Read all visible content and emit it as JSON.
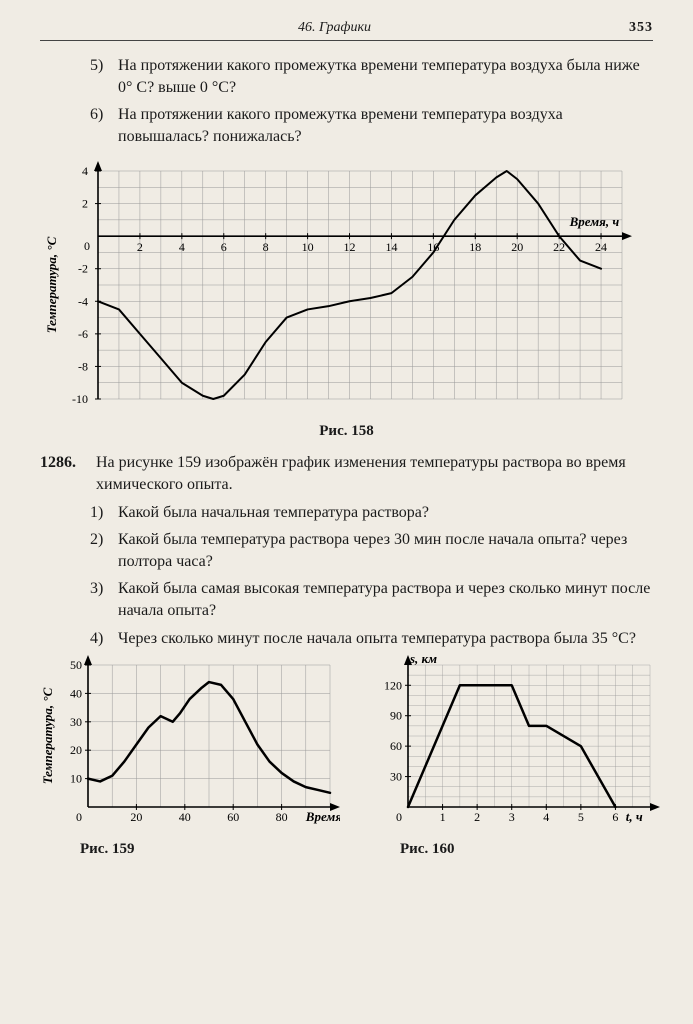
{
  "header": {
    "chapter": "46. Графики",
    "page_number": "353"
  },
  "top_questions": [
    {
      "num": "5)",
      "text": "На протяжении какого промежутка времени температура воздуха была ниже 0° С? выше 0 °С?"
    },
    {
      "num": "6)",
      "text": "На протяжении какого промежутка времени температура воздуха повышалась? понижалась?"
    }
  ],
  "problem": {
    "num": "1286.",
    "intro": "На рисунке 159 изображён график изменения температуры раствора во время химического опыта.",
    "questions": [
      {
        "num": "1)",
        "text": "Какой была начальная температура раствора?"
      },
      {
        "num": "2)",
        "text": "Какой была температура раствора через 30 мин после начала опыта? через полтора часа?"
      },
      {
        "num": "3)",
        "text": "Какой была самая высокая температура раствора и через сколько минут после начала опыта?"
      },
      {
        "num": "4)",
        "text": "Через сколько минут после начала опыта температура раствора была 35 °С?"
      }
    ]
  },
  "captions": {
    "fig158": "Рис. 158",
    "fig159": "Рис. 159",
    "fig160": "Рис. 160"
  },
  "chart158": {
    "type": "line",
    "xlabel": "Время, ч",
    "ylabel": "Температура, °С",
    "xlim": [
      0,
      25
    ],
    "ylim": [
      -10,
      4
    ],
    "xticks": [
      2,
      4,
      6,
      8,
      10,
      12,
      14,
      16,
      18,
      20,
      22,
      24
    ],
    "yticks_pos": [
      2,
      4
    ],
    "yticks_neg": [
      -2,
      -4,
      -6,
      -8,
      -10
    ],
    "grid_color": "#999",
    "axis_color": "#000",
    "line_color": "#000",
    "line_width": 2,
    "bg": "#f0ece4",
    "data": [
      [
        0,
        -4
      ],
      [
        1,
        -4.5
      ],
      [
        2,
        -6
      ],
      [
        3,
        -7.5
      ],
      [
        4,
        -9
      ],
      [
        5,
        -9.8
      ],
      [
        5.5,
        -10
      ],
      [
        6,
        -9.8
      ],
      [
        7,
        -8.5
      ],
      [
        8,
        -6.5
      ],
      [
        9,
        -5
      ],
      [
        10,
        -4.5
      ],
      [
        11,
        -4.3
      ],
      [
        12,
        -4
      ],
      [
        13,
        -3.8
      ],
      [
        14,
        -3.5
      ],
      [
        15,
        -2.5
      ],
      [
        16,
        -1
      ],
      [
        16.5,
        0
      ],
      [
        17,
        1
      ],
      [
        18,
        2.5
      ],
      [
        19,
        3.6
      ],
      [
        19.5,
        4
      ],
      [
        20,
        3.5
      ],
      [
        21,
        2
      ],
      [
        22,
        0
      ],
      [
        23,
        -1.5
      ],
      [
        24,
        -2
      ]
    ]
  },
  "chart159": {
    "type": "line",
    "xlabel": "Время, мин",
    "ylabel": "Температура, °С",
    "xlim": [
      0,
      100
    ],
    "ylim": [
      0,
      50
    ],
    "xticks": [
      20,
      40,
      60,
      80
    ],
    "yticks": [
      10,
      20,
      30,
      40,
      50
    ],
    "grid_color": "#999",
    "axis_color": "#000",
    "line_color": "#000",
    "line_width": 2.5,
    "bg": "#f0ece4",
    "data": [
      [
        0,
        10
      ],
      [
        5,
        9
      ],
      [
        10,
        11
      ],
      [
        15,
        16
      ],
      [
        20,
        22
      ],
      [
        25,
        28
      ],
      [
        30,
        32
      ],
      [
        35,
        30
      ],
      [
        38,
        33
      ],
      [
        42,
        38
      ],
      [
        47,
        42
      ],
      [
        50,
        44
      ],
      [
        55,
        43
      ],
      [
        60,
        38
      ],
      [
        65,
        30
      ],
      [
        70,
        22
      ],
      [
        75,
        16
      ],
      [
        80,
        12
      ],
      [
        85,
        9
      ],
      [
        90,
        7
      ],
      [
        95,
        6
      ],
      [
        100,
        5
      ]
    ]
  },
  "chart160": {
    "type": "line",
    "xlabel": "t, ч",
    "ylabel": "s, км",
    "xlim": [
      0,
      7
    ],
    "ylim": [
      0,
      140
    ],
    "xticks": [
      1,
      2,
      3,
      4,
      5,
      6
    ],
    "yticks": [
      30,
      60,
      90,
      120
    ],
    "grid_color": "#999",
    "axis_color": "#000",
    "line_color": "#000",
    "line_width": 2.5,
    "bg": "#f0ece4",
    "data": [
      [
        0,
        0
      ],
      [
        1.5,
        120
      ],
      [
        3,
        120
      ],
      [
        3.5,
        80
      ],
      [
        4,
        80
      ],
      [
        5,
        60
      ],
      [
        6,
        0
      ]
    ]
  }
}
